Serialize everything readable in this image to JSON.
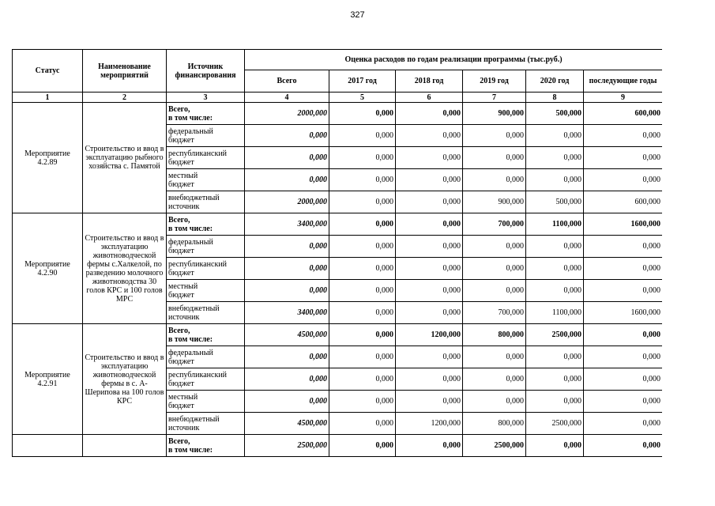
{
  "page_number": "327",
  "table": {
    "header": {
      "status": "Статус",
      "name": "Наименование мероприятий",
      "source": "Источник финансирования",
      "group": "Оценка расходов по годам реализации  программы (тыс.руб.)",
      "years": [
        "Всего",
        "2017 год",
        "2018 год",
        "2019 год",
        "2020 год",
        "последующие годы"
      ]
    },
    "column_numbers": [
      "1",
      "2",
      "3",
      "4",
      "5",
      "6",
      "7",
      "8",
      "9"
    ],
    "blocks": [
      {
        "status": "Мероприятие 4.2.89",
        "name": "Строительство и ввод в эксплуатацию рыбного хозяйства с. Памятой",
        "rows": [
          {
            "source": [
              "Всего,",
              "в том числе:"
            ],
            "values": [
              "2000,000",
              "0,000",
              "0,000",
              "900,000",
              "500,000",
              "600,000"
            ]
          },
          {
            "source": [
              "федеральный",
              "бюджет"
            ],
            "values": [
              "0,000",
              "0,000",
              "0,000",
              "0,000",
              "0,000",
              "0,000"
            ]
          },
          {
            "source": [
              "республиканский",
              "бюджет"
            ],
            "values": [
              "0,000",
              "0,000",
              "0,000",
              "0,000",
              "0,000",
              "0,000"
            ]
          },
          {
            "source": [
              "местный",
              "бюджет"
            ],
            "values": [
              "0,000",
              "0,000",
              "0,000",
              "0,000",
              "0,000",
              "0,000"
            ]
          },
          {
            "source": [
              "внебюджетный",
              "источник"
            ],
            "values": [
              "2000,000",
              "0,000",
              "0,000",
              "900,000",
              "500,000",
              "600,000"
            ]
          }
        ]
      },
      {
        "status": "Мероприятие 4.2.90",
        "name": "Строительство и ввод в эксплуатацию животноводческой фермы с.Халкелой, по разведению молочного животноводства 30 голов КРС и 100 голов МРС",
        "rows": [
          {
            "source": [
              "Всего,",
              "в том числе:"
            ],
            "values": [
              "3400,000",
              "0,000",
              "0,000",
              "700,000",
              "1100,000",
              "1600,000"
            ]
          },
          {
            "source": [
              "федеральный",
              "бюджет"
            ],
            "values": [
              "0,000",
              "0,000",
              "0,000",
              "0,000",
              "0,000",
              "0,000"
            ]
          },
          {
            "source": [
              "республиканский",
              "бюджет"
            ],
            "values": [
              "0,000",
              "0,000",
              "0,000",
              "0,000",
              "0,000",
              "0,000"
            ]
          },
          {
            "source": [
              "местный",
              "бюджет"
            ],
            "values": [
              "0,000",
              "0,000",
              "0,000",
              "0,000",
              "0,000",
              "0,000"
            ]
          },
          {
            "source": [
              "внебюджетный",
              "источник"
            ],
            "values": [
              "3400,000",
              "0,000",
              "0,000",
              "700,000",
              "1100,000",
              "1600,000"
            ]
          }
        ]
      },
      {
        "status": "Мероприятие 4.2.91",
        "name": "Строительство и ввод в эксплуатацию животноводческой фермы в с. А-Шерипова на 100 голов КРС",
        "rows": [
          {
            "source": [
              "Всего,",
              "в том числе:"
            ],
            "values": [
              "4500,000",
              "0,000",
              "1200,000",
              "800,000",
              "2500,000",
              "0,000"
            ]
          },
          {
            "source": [
              "федеральный",
              "бюджет"
            ],
            "values": [
              "0,000",
              "0,000",
              "0,000",
              "0,000",
              "0,000",
              "0,000"
            ]
          },
          {
            "source": [
              "республиканский",
              "бюджет"
            ],
            "values": [
              "0,000",
              "0,000",
              "0,000",
              "0,000",
              "0,000",
              "0,000"
            ]
          },
          {
            "source": [
              "местный",
              "бюджет"
            ],
            "values": [
              "0,000",
              "0,000",
              "0,000",
              "0,000",
              "0,000",
              "0,000"
            ]
          },
          {
            "source": [
              "внебюджетный",
              "источник"
            ],
            "values": [
              "4500,000",
              "0,000",
              "1200,000",
              "800,000",
              "2500,000",
              "0,000"
            ]
          }
        ]
      },
      {
        "rows": [
          {
            "source": [
              "Всего,",
              "в том числе:"
            ],
            "values": [
              "2500,000",
              "0,000",
              "0,000",
              "2500,000",
              "0,000",
              "0,000"
            ]
          }
        ]
      }
    ]
  }
}
